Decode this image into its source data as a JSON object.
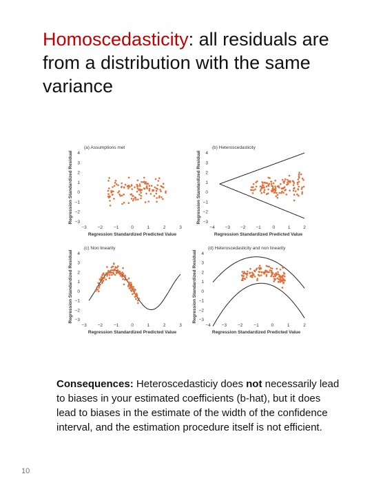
{
  "title": {
    "term": "Homoscedasticity",
    "rest": ": all residuals are from a distribution with the same variance"
  },
  "figure": {
    "panels": [
      {
        "label": "(a) Assumptions met",
        "x_label": "Regression Standardized Predicted Value",
        "y_label": "Regression Standardized Residual",
        "x_ticks": [
          "−3",
          "−2",
          "−1",
          "0",
          "1",
          "2",
          "3"
        ],
        "y_ticks": [
          "4",
          "3",
          "2",
          "1",
          "0",
          "−1",
          "−2",
          "−3"
        ]
      },
      {
        "label": "(b) Heteroscedasticity",
        "x_label": "Regression Standardized Predicted Value",
        "y_label": "Regression Standardized Residual",
        "x_ticks": [
          "−4",
          "−3",
          "−2",
          "−1",
          "0",
          "1",
          "2"
        ],
        "y_ticks": [
          "4",
          "3",
          "2",
          "1",
          "0",
          "−1",
          "−2",
          "−3"
        ]
      },
      {
        "label": "(c) Non linearity",
        "x_label": "Regression Standardized Predicted Value",
        "y_label": "Regression Standardized Residual",
        "x_ticks": [
          "−3",
          "−2",
          "−1",
          "0",
          "1",
          "2",
          "3"
        ],
        "y_ticks": [
          "4",
          "3",
          "2",
          "1",
          "0",
          "−1",
          "−2",
          "−3"
        ]
      },
      {
        "label": "(d) Heteroscedasticity and non linearity",
        "x_label": "Regression Standardized Predicted Value",
        "y_label": "Regression Standardized Residual",
        "x_ticks": [
          "−4",
          "−3",
          "−2",
          "−1",
          "0",
          "1",
          "2"
        ],
        "y_ticks": [
          "4",
          "3",
          "2",
          "1",
          "0",
          "−1",
          "−2",
          "−3"
        ]
      }
    ]
  },
  "body": {
    "lead": "Consequences:",
    "text_1": " Heteroscedasticiy does ",
    "emph": "not",
    "text_2": " necessarily lead to biases in your estimated coefficients (b-hat), but it does lead to biases in the estimate of the width of the confidence interval, and the estimation procedure itself is not efficient."
  },
  "page_number": "10"
}
